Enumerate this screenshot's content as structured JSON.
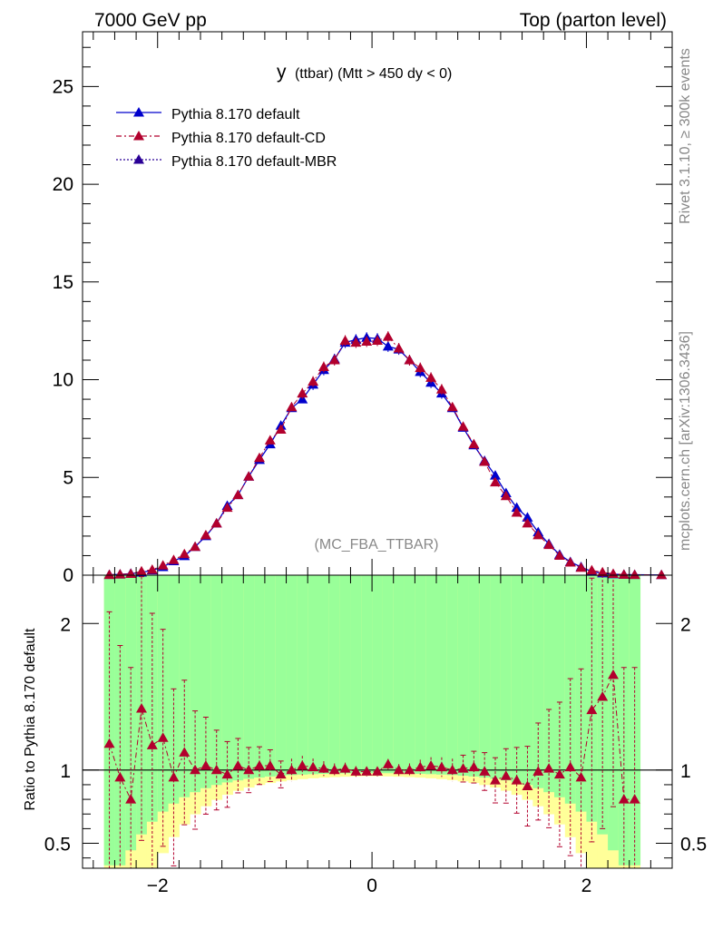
{
  "header": {
    "left": "7000 GeV pp",
    "right": "Top (parton level)"
  },
  "side": {
    "rivet": "Rivet 3.1.10, ≥ 300k events",
    "mcplots": "mcplots.cern.ch [arXiv:1306.3436]"
  },
  "chart_data": [
    {
      "type": "line",
      "title": "y (ttbar) (Mtt > 450 dy < 0)",
      "title_main": "y",
      "title_rest": "(ttbar) (Mtt > 450 dy < 0)",
      "annotation": "(MC_FBA_TTBAR)",
      "xlim": [
        -2.7,
        2.8
      ],
      "ylim": [
        0,
        27.8
      ],
      "yticks": [
        0,
        5,
        10,
        15,
        20,
        25
      ],
      "legend_position": "top-left",
      "grid": false,
      "series": [
        {
          "name": "Pythia 8.170 default",
          "color": "#0000cc",
          "style": "solid",
          "x": [
            -2.45,
            -2.35,
            -2.25,
            -2.15,
            -2.05,
            -1.95,
            -1.85,
            -1.75,
            -1.65,
            -1.55,
            -1.45,
            -1.35,
            -1.25,
            -1.15,
            -1.05,
            -0.95,
            -0.85,
            -0.75,
            -0.65,
            -0.55,
            -0.45,
            -0.35,
            -0.25,
            -0.15,
            -0.05,
            0.05,
            0.15,
            0.25,
            0.35,
            0.45,
            0.55,
            0.65,
            0.75,
            0.85,
            0.95,
            1.05,
            1.15,
            1.25,
            1.35,
            1.45,
            1.55,
            1.65,
            1.75,
            1.85,
            1.95,
            2.05,
            2.15,
            2.25,
            2.35,
            2.45,
            2.7
          ],
          "values": [
            0.02,
            0.04,
            0.08,
            0.14,
            0.25,
            0.42,
            0.72,
            0.98,
            1.45,
            2.0,
            2.65,
            3.55,
            4.1,
            5.05,
            5.9,
            6.7,
            7.65,
            8.55,
            9.0,
            9.75,
            10.5,
            11.05,
            11.9,
            12.05,
            12.15,
            12.1,
            11.7,
            11.55,
            11.0,
            10.4,
            9.85,
            9.3,
            8.55,
            7.55,
            6.65,
            5.85,
            5.1,
            4.2,
            3.45,
            2.95,
            2.2,
            1.6,
            1.05,
            0.68,
            0.42,
            0.18,
            0.1,
            0.05,
            0.03,
            0.02,
            0.01
          ]
        },
        {
          "name": "Pythia 8.170 default-CD",
          "color": "#b2002d",
          "style": "dashdot",
          "x": [
            -2.45,
            -2.35,
            -2.25,
            -2.15,
            -2.05,
            -1.95,
            -1.85,
            -1.75,
            -1.65,
            -1.55,
            -1.45,
            -1.35,
            -1.25,
            -1.15,
            -1.05,
            -0.95,
            -0.85,
            -0.75,
            -0.65,
            -0.55,
            -0.45,
            -0.35,
            -0.25,
            -0.15,
            -0.05,
            0.05,
            0.15,
            0.25,
            0.35,
            0.45,
            0.55,
            0.65,
            0.75,
            0.85,
            0.95,
            1.05,
            1.15,
            1.25,
            1.35,
            1.45,
            1.55,
            1.65,
            1.75,
            1.85,
            1.95,
            2.05,
            2.15,
            2.25,
            2.35,
            2.45,
            2.7
          ],
          "values": [
            0.02,
            0.04,
            0.07,
            0.2,
            0.28,
            0.5,
            0.78,
            1.08,
            1.45,
            2.05,
            2.65,
            3.45,
            4.1,
            5.05,
            6.0,
            6.9,
            7.45,
            8.6,
            9.3,
            9.9,
            10.65,
            11.0,
            12.0,
            11.9,
            11.95,
            12.0,
            12.2,
            11.6,
            11.0,
            10.6,
            10.1,
            9.5,
            8.6,
            7.6,
            6.7,
            5.8,
            4.75,
            4.05,
            3.2,
            2.65,
            2.05,
            1.55,
            1.0,
            0.65,
            0.38,
            0.25,
            0.15,
            0.07,
            0.03,
            0.02,
            0.01
          ],
          "ratio": [
            1.18,
            0.95,
            0.8,
            1.42,
            1.17,
            1.22,
            0.95,
            1.12,
            1.0,
            1.03,
            1.0,
            0.97,
            1.03,
            1.0,
            1.03,
            1.03,
            0.97,
            1.0,
            1.03,
            1.02,
            1.01,
            1.0,
            1.01,
            0.99,
            0.99,
            0.99,
            1.04,
            1.0,
            1.0,
            1.02,
            1.03,
            1.02,
            1.0,
            1.01,
            1.02,
            0.99,
            0.93,
            0.96,
            0.93,
            0.89,
            0.99,
            1.01,
            0.97,
            1.02,
            0.95,
            1.41,
            1.5,
            1.65,
            0.8,
            0.8
          ]
        },
        {
          "name": "Pythia 8.170 default-MBR",
          "color": "#2a0096",
          "style": "dotted",
          "x": [],
          "values": []
        }
      ]
    },
    {
      "type": "line",
      "ylabel": "Ratio to Pythia 8.170 default",
      "xlim": [
        -2.7,
        2.8
      ],
      "ylim": [
        0.33,
        2.33
      ],
      "yticks": [
        0.5,
        1,
        2
      ],
      "xticks": [
        -2,
        0,
        2
      ],
      "reference_line": 1,
      "band_colors": {
        "inner": "#99ff99",
        "outer": "#ffff99"
      }
    }
  ]
}
